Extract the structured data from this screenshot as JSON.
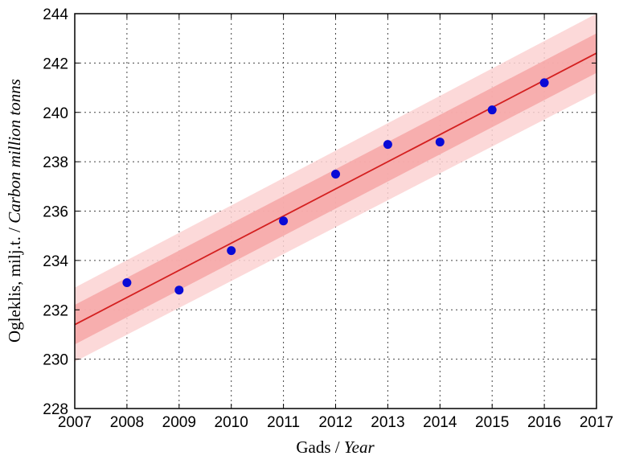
{
  "chart_data": {
    "type": "scatter",
    "xlabel_main": "Gads / ",
    "xlabel_italic": "Year",
    "ylabel_main": "Ogleklis, milj.t. / ",
    "ylabel_italic": "Carbon million tonns",
    "xlim": [
      2007,
      2017
    ],
    "ylim": [
      228,
      244
    ],
    "x_ticks": [
      2007,
      2008,
      2009,
      2010,
      2011,
      2012,
      2013,
      2014,
      2015,
      2016,
      2017
    ],
    "y_ticks": [
      228,
      230,
      232,
      234,
      236,
      238,
      240,
      242,
      244
    ],
    "grid": true,
    "points": {
      "x": [
        2008,
        2009,
        2010,
        2011,
        2012,
        2013,
        2014,
        2015,
        2016
      ],
      "y": [
        233.1,
        232.8,
        234.4,
        235.6,
        237.5,
        238.7,
        238.8,
        240.1,
        241.2
      ],
      "color": "#0a0ad6"
    },
    "fit_line": {
      "x": [
        2007,
        2017
      ],
      "y": [
        231.4,
        242.4
      ],
      "color": "#d42020"
    },
    "bands": [
      {
        "x": [
          2007,
          2017
        ],
        "lower": [
          229.9,
          240.8
        ],
        "upper": [
          232.9,
          244.0
        ],
        "color": "#fbd2d2"
      },
      {
        "x": [
          2007,
          2017
        ],
        "lower": [
          230.6,
          241.6
        ],
        "upper": [
          232.2,
          243.2
        ],
        "color": "#f6a6a6"
      }
    ]
  }
}
